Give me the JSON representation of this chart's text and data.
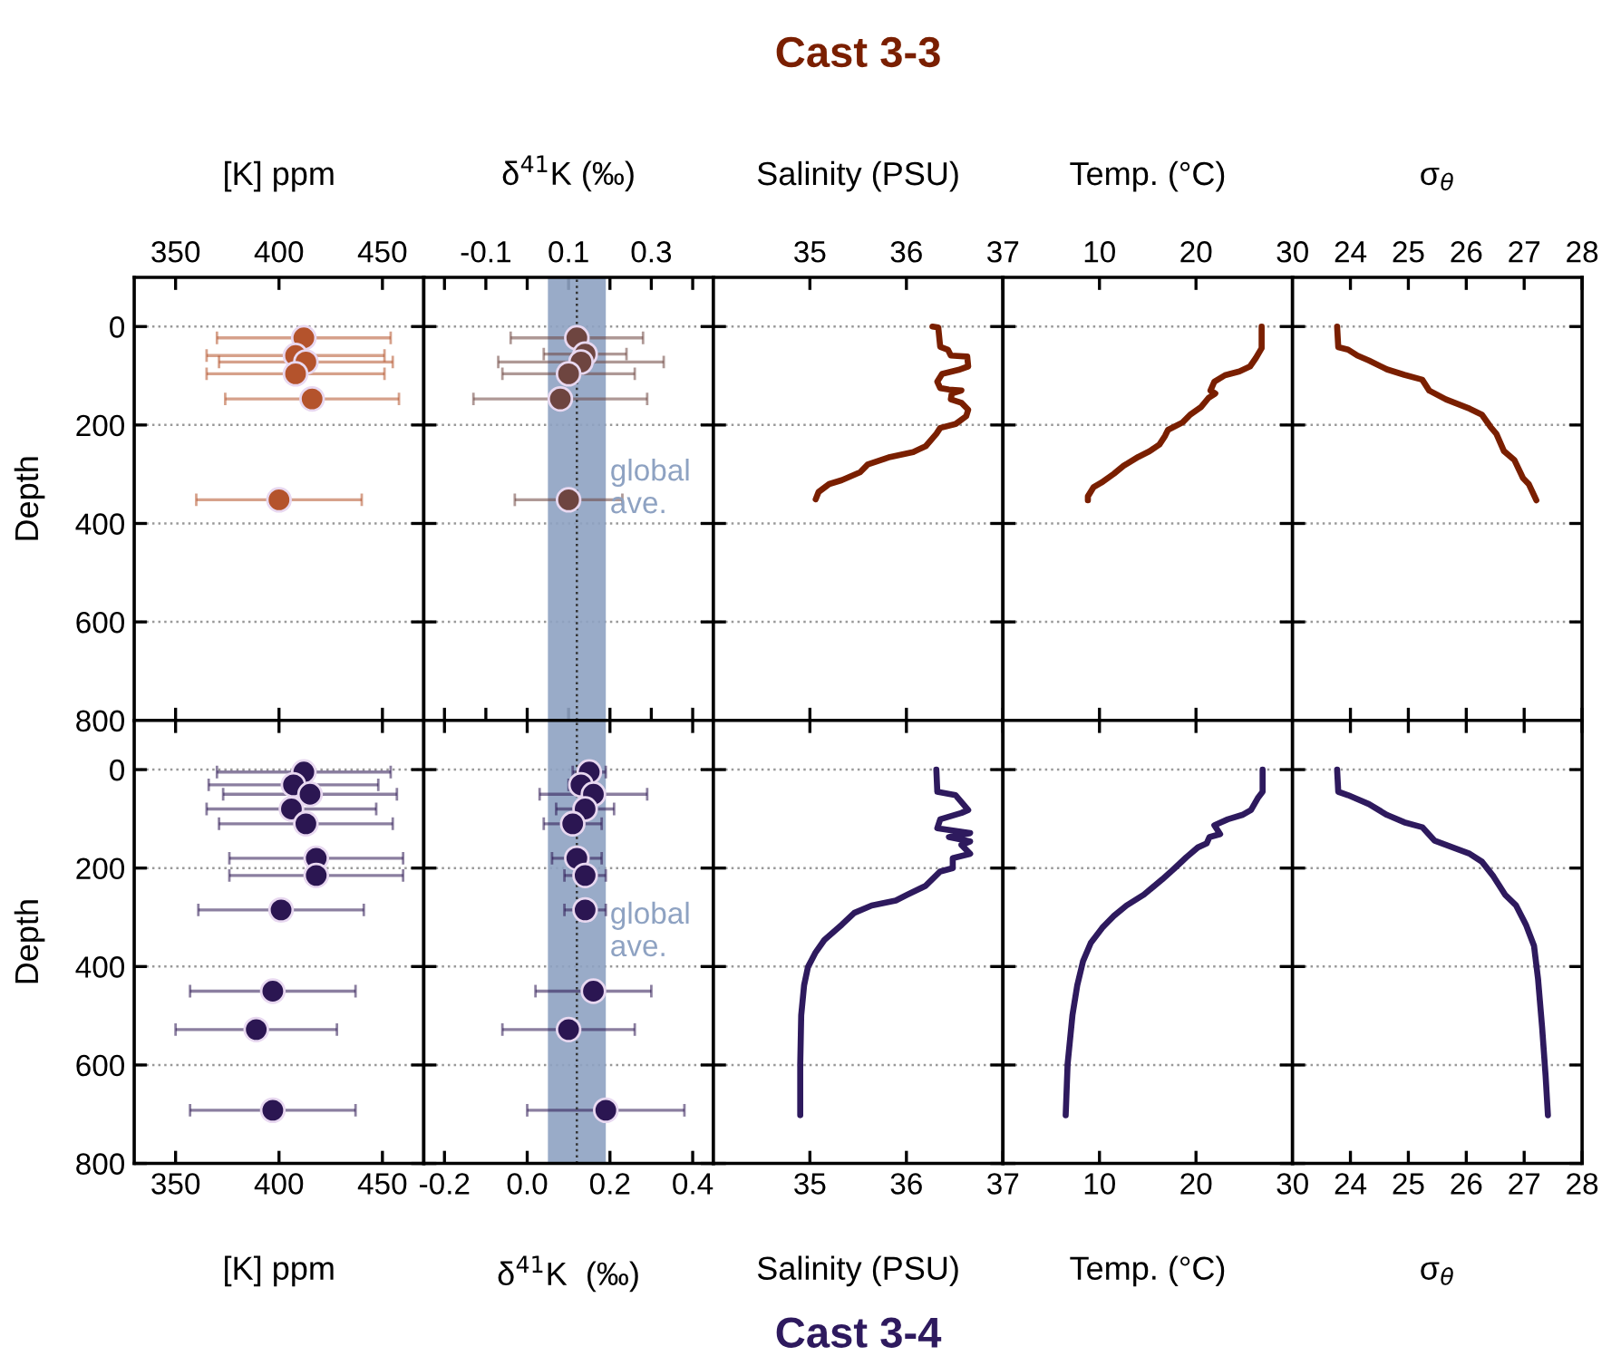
{
  "chart_data": [
    {
      "type": "scatter",
      "xlabel": "[K] ppm",
      "ylabel": "Depth",
      "xlim": [
        330,
        470
      ],
      "xticks": [
        350,
        400,
        450
      ],
      "ylim": [
        800,
        -100
      ],
      "yticks": [
        0,
        200,
        400,
        600,
        800
      ],
      "grid": "y",
      "marker": "circle",
      "series": [
        {
          "color": "#b4532c",
          "x": [
            412,
            408,
            413,
            408,
            416,
            400
          ],
          "values": [
            23,
            59,
            72,
            96,
            147,
            352
          ],
          "xerrors": [
            42,
            43,
            42,
            43,
            42,
            40
          ]
        }
      ]
    },
    {
      "type": "scatter",
      "xlabel": "δ$^{41}$K (‰)",
      "xlim": [
        -0.25,
        0.45
      ],
      "xticks": [
        {
          "value": -0.2,
          "label": null
        },
        -0.1,
        {
          "value": 0.0,
          "label": null
        },
        0.1,
        {
          "value": 0.2,
          "label": null
        },
        0.3,
        {
          "value": 0.4,
          "label": null
        }
      ],
      "ylim": [
        800,
        -100
      ],
      "yticks": [
        0,
        200,
        400,
        600,
        800
      ],
      "grid": "y",
      "marker": "circle",
      "tick_labels": "x",
      "bands": [
        {
          "axis": "x",
          "from": 0.05,
          "to": 0.19,
          "label": "global ave.",
          "color": "#8ea2c2"
        }
      ],
      "ref_lines": [
        {
          "axis": "x",
          "value": 0.12,
          "line_style": "dotted",
          "color": "#333333"
        }
      ],
      "series": [
        {
          "color": "#6e4540",
          "x": [
            0.12,
            0.14,
            0.13,
            0.1,
            0.08,
            0.1
          ],
          "values": [
            23,
            56,
            72,
            96,
            147,
            352
          ],
          "xerrors": [
            0.16,
            0.1,
            0.2,
            0.16,
            0.21,
            0.13
          ]
        }
      ]
    },
    {
      "type": "line",
      "title": "Cast 3-3",
      "xlabel": "Salinity (PSU)",
      "xlim": [
        34,
        37
      ],
      "xticks": [
        35,
        36,
        37
      ],
      "ylim": [
        800,
        -100
      ],
      "yticks": [
        0,
        200,
        400,
        600,
        800
      ],
      "grid": "y",
      "tick_labels": "x",
      "series": [
        {
          "color": "#7a1f00",
          "x": [
            36.27,
            36.33,
            36.35,
            36.43,
            36.46,
            36.63,
            36.64,
            36.54,
            36.37,
            36.32,
            36.35,
            36.44,
            36.57,
            36.47,
            36.46,
            36.57,
            36.64,
            36.62,
            36.51,
            36.35,
            36.31,
            36.2,
            36.07,
            35.83,
            35.6,
            35.52,
            35.33,
            35.2,
            35.09,
            35.06
          ],
          "values": [
            0,
            2,
            41,
            47,
            59,
            61,
            81,
            88,
            96,
            112,
            125,
            128,
            130,
            136,
            148,
            155,
            169,
            182,
            198,
            206,
            218,
            243,
            255,
            265,
            280,
            296,
            312,
            320,
            336,
            351
          ]
        }
      ]
    },
    {
      "type": "line",
      "xlabel": "Temp. (°C)",
      "xlim": [
        0,
        30
      ],
      "xticks": [
        10,
        20,
        30
      ],
      "ylim": [
        800,
        -100
      ],
      "yticks": [
        0,
        200,
        400,
        600,
        800
      ],
      "grid": "y",
      "tick_labels": "x",
      "series": [
        {
          "color": "#7a1f00",
          "x": [
            26.8,
            26.8,
            26.2,
            25.6,
            24.5,
            23.0,
            21.9,
            21.5,
            22.0,
            21.3,
            20.5,
            19.4,
            18.6,
            17.1,
            16.8,
            16.2,
            15.2,
            14.0,
            12.5,
            11.5,
            10.2,
            9.4,
            8.8,
            8.8
          ],
          "values": [
            0,
            44,
            64,
            81,
            91,
            99,
            112,
            130,
            136,
            145,
            164,
            179,
            195,
            210,
            222,
            240,
            253,
            265,
            283,
            299,
            317,
            326,
            345,
            353
          ]
        }
      ]
    },
    {
      "type": "line",
      "xlabel": "σ$_{θ}$",
      "xlim": [
        23,
        28
      ],
      "xticks": [
        24,
        25,
        26,
        27,
        28
      ],
      "ylim": [
        800,
        -100
      ],
      "yticks": [
        0,
        200,
        400,
        600,
        800
      ],
      "grid": "y",
      "tick_labels": "x",
      "series": [
        {
          "color": "#7a1f00",
          "x": [
            23.77,
            23.79,
            23.96,
            24.12,
            24.32,
            24.63,
            24.93,
            25.24,
            25.36,
            25.65,
            26.06,
            26.27,
            26.42,
            26.52,
            26.65,
            26.83,
            26.98,
            27.08,
            27.21
          ],
          "values": [
            0,
            42,
            47,
            59,
            69,
            87,
            98,
            108,
            130,
            148,
            167,
            179,
            204,
            218,
            253,
            271,
            308,
            320,
            353
          ]
        }
      ]
    },
    {
      "type": "scatter",
      "xlabel": "[K] ppm",
      "ylabel": "Depth",
      "xlim": [
        330,
        470
      ],
      "xticks": [
        350,
        400,
        450
      ],
      "ylim": [
        800,
        -100
      ],
      "yticks": [
        0,
        200,
        400,
        600,
        800
      ],
      "grid": "y",
      "marker": "circle",
      "series": [
        {
          "color": "#2b1652",
          "x": [
            412,
            407,
            415,
            406,
            413,
            418,
            418,
            401,
            397,
            389,
            397
          ],
          "values": [
            5,
            31,
            50,
            80,
            110,
            180,
            215,
            285,
            450,
            528,
            692
          ],
          "xerrors": [
            42,
            41,
            42,
            41,
            42,
            42,
            42,
            40,
            40,
            39,
            40
          ]
        }
      ]
    },
    {
      "type": "scatter",
      "xlabel": "δ$^{41}$K  (‰)",
      "xlim": [
        -0.25,
        0.45
      ],
      "xticks": [
        -0.2,
        {
          "value": 0.0,
          "label": "0.0"
        },
        0.2,
        0.4
      ],
      "ylim": [
        800,
        -100
      ],
      "yticks": [
        0,
        200,
        400,
        600,
        800
      ],
      "grid": "y",
      "marker": "circle",
      "tick_labels": "x",
      "bands": [
        {
          "axis": "x",
          "from": 0.05,
          "to": 0.19,
          "label": "global ave.",
          "color": "#8ea2c2"
        }
      ],
      "ref_lines": [
        {
          "axis": "x",
          "value": 0.12,
          "line_style": "dotted",
          "color": "#333333"
        }
      ],
      "series": [
        {
          "color": "#2b1652",
          "x": [
            0.15,
            0.13,
            0.16,
            0.14,
            0.11,
            0.12,
            0.14,
            0.14,
            0.16,
            0.1,
            0.19
          ],
          "values": [
            5,
            31,
            50,
            80,
            110,
            180,
            215,
            285,
            450,
            528,
            692
          ],
          "xerrors": [
            0.04,
            0.03,
            0.13,
            0.07,
            0.07,
            0.06,
            0.05,
            0.05,
            0.14,
            0.16,
            0.19
          ]
        }
      ]
    },
    {
      "type": "line",
      "title": "Cast 3-4",
      "xlabel": "Salinity (PSU)",
      "xlim": [
        34,
        37
      ],
      "xticks": [
        35,
        36,
        37
      ],
      "ylim": [
        800,
        -100
      ],
      "yticks": [
        0,
        200,
        400,
        600,
        800
      ],
      "grid": "y",
      "tick_labels": "x",
      "series": [
        {
          "color": "#2e1a5e",
          "x": [
            36.31,
            36.32,
            36.51,
            36.64,
            36.57,
            36.35,
            36.32,
            36.66,
            36.44,
            36.66,
            36.57,
            36.66,
            36.48,
            36.48,
            36.35,
            36.2,
            36.01,
            35.89,
            35.64,
            35.46,
            35.33,
            35.15,
            35.06,
            34.98,
            34.94,
            34.91,
            34.9,
            34.9
          ],
          "values": [
            0,
            45,
            52,
            82,
            88,
            101,
            119,
            129,
            137,
            146,
            153,
            171,
            180,
            200,
            207,
            236,
            254,
            266,
            276,
            291,
            315,
            346,
            371,
            401,
            438,
            499,
            598,
            702
          ]
        }
      ]
    },
    {
      "type": "line",
      "xlabel": "Temp. (°C)",
      "xlim": [
        0,
        30
      ],
      "xticks": [
        10,
        20,
        30
      ],
      "ylim": [
        800,
        -100
      ],
      "yticks": [
        0,
        200,
        400,
        600,
        800
      ],
      "grid": "y",
      "tick_labels": "x",
      "series": [
        {
          "color": "#2e1a5e",
          "x": [
            26.9,
            26.9,
            26.4,
            25.7,
            24.8,
            23.3,
            21.9,
            22.5,
            21.4,
            21.1,
            20.2,
            19.0,
            17.7,
            16.5,
            14.6,
            12.8,
            11.5,
            10.3,
            9.1,
            8.3,
            7.7,
            7.2,
            6.7,
            6.5
          ],
          "values": [
            0,
            45,
            58,
            82,
            92,
            101,
            113,
            131,
            137,
            150,
            158,
            178,
            202,
            223,
            254,
            276,
            297,
            321,
            352,
            389,
            438,
            499,
            598,
            702
          ]
        }
      ]
    },
    {
      "type": "line",
      "xlabel": "σ$_{θ}$",
      "xlim": [
        23,
        28
      ],
      "xticks": [
        24,
        25,
        26,
        27,
        28
      ],
      "ylim": [
        800,
        -100
      ],
      "yticks": [
        0,
        200,
        400,
        600,
        800
      ],
      "grid": "y",
      "tick_labels": "x",
      "series": [
        {
          "color": "#2e1a5e",
          "x": [
            23.77,
            23.79,
            23.96,
            24.32,
            24.63,
            24.93,
            25.24,
            25.45,
            25.86,
            26.06,
            26.27,
            26.47,
            26.67,
            26.86,
            27.03,
            27.17,
            27.24,
            27.31,
            27.37,
            27.41
          ],
          "values": [
            0,
            45,
            52,
            70,
            92,
            107,
            117,
            144,
            162,
            171,
            187,
            217,
            254,
            276,
            315,
            358,
            426,
            524,
            622,
            702
          ]
        }
      ]
    }
  ]
}
